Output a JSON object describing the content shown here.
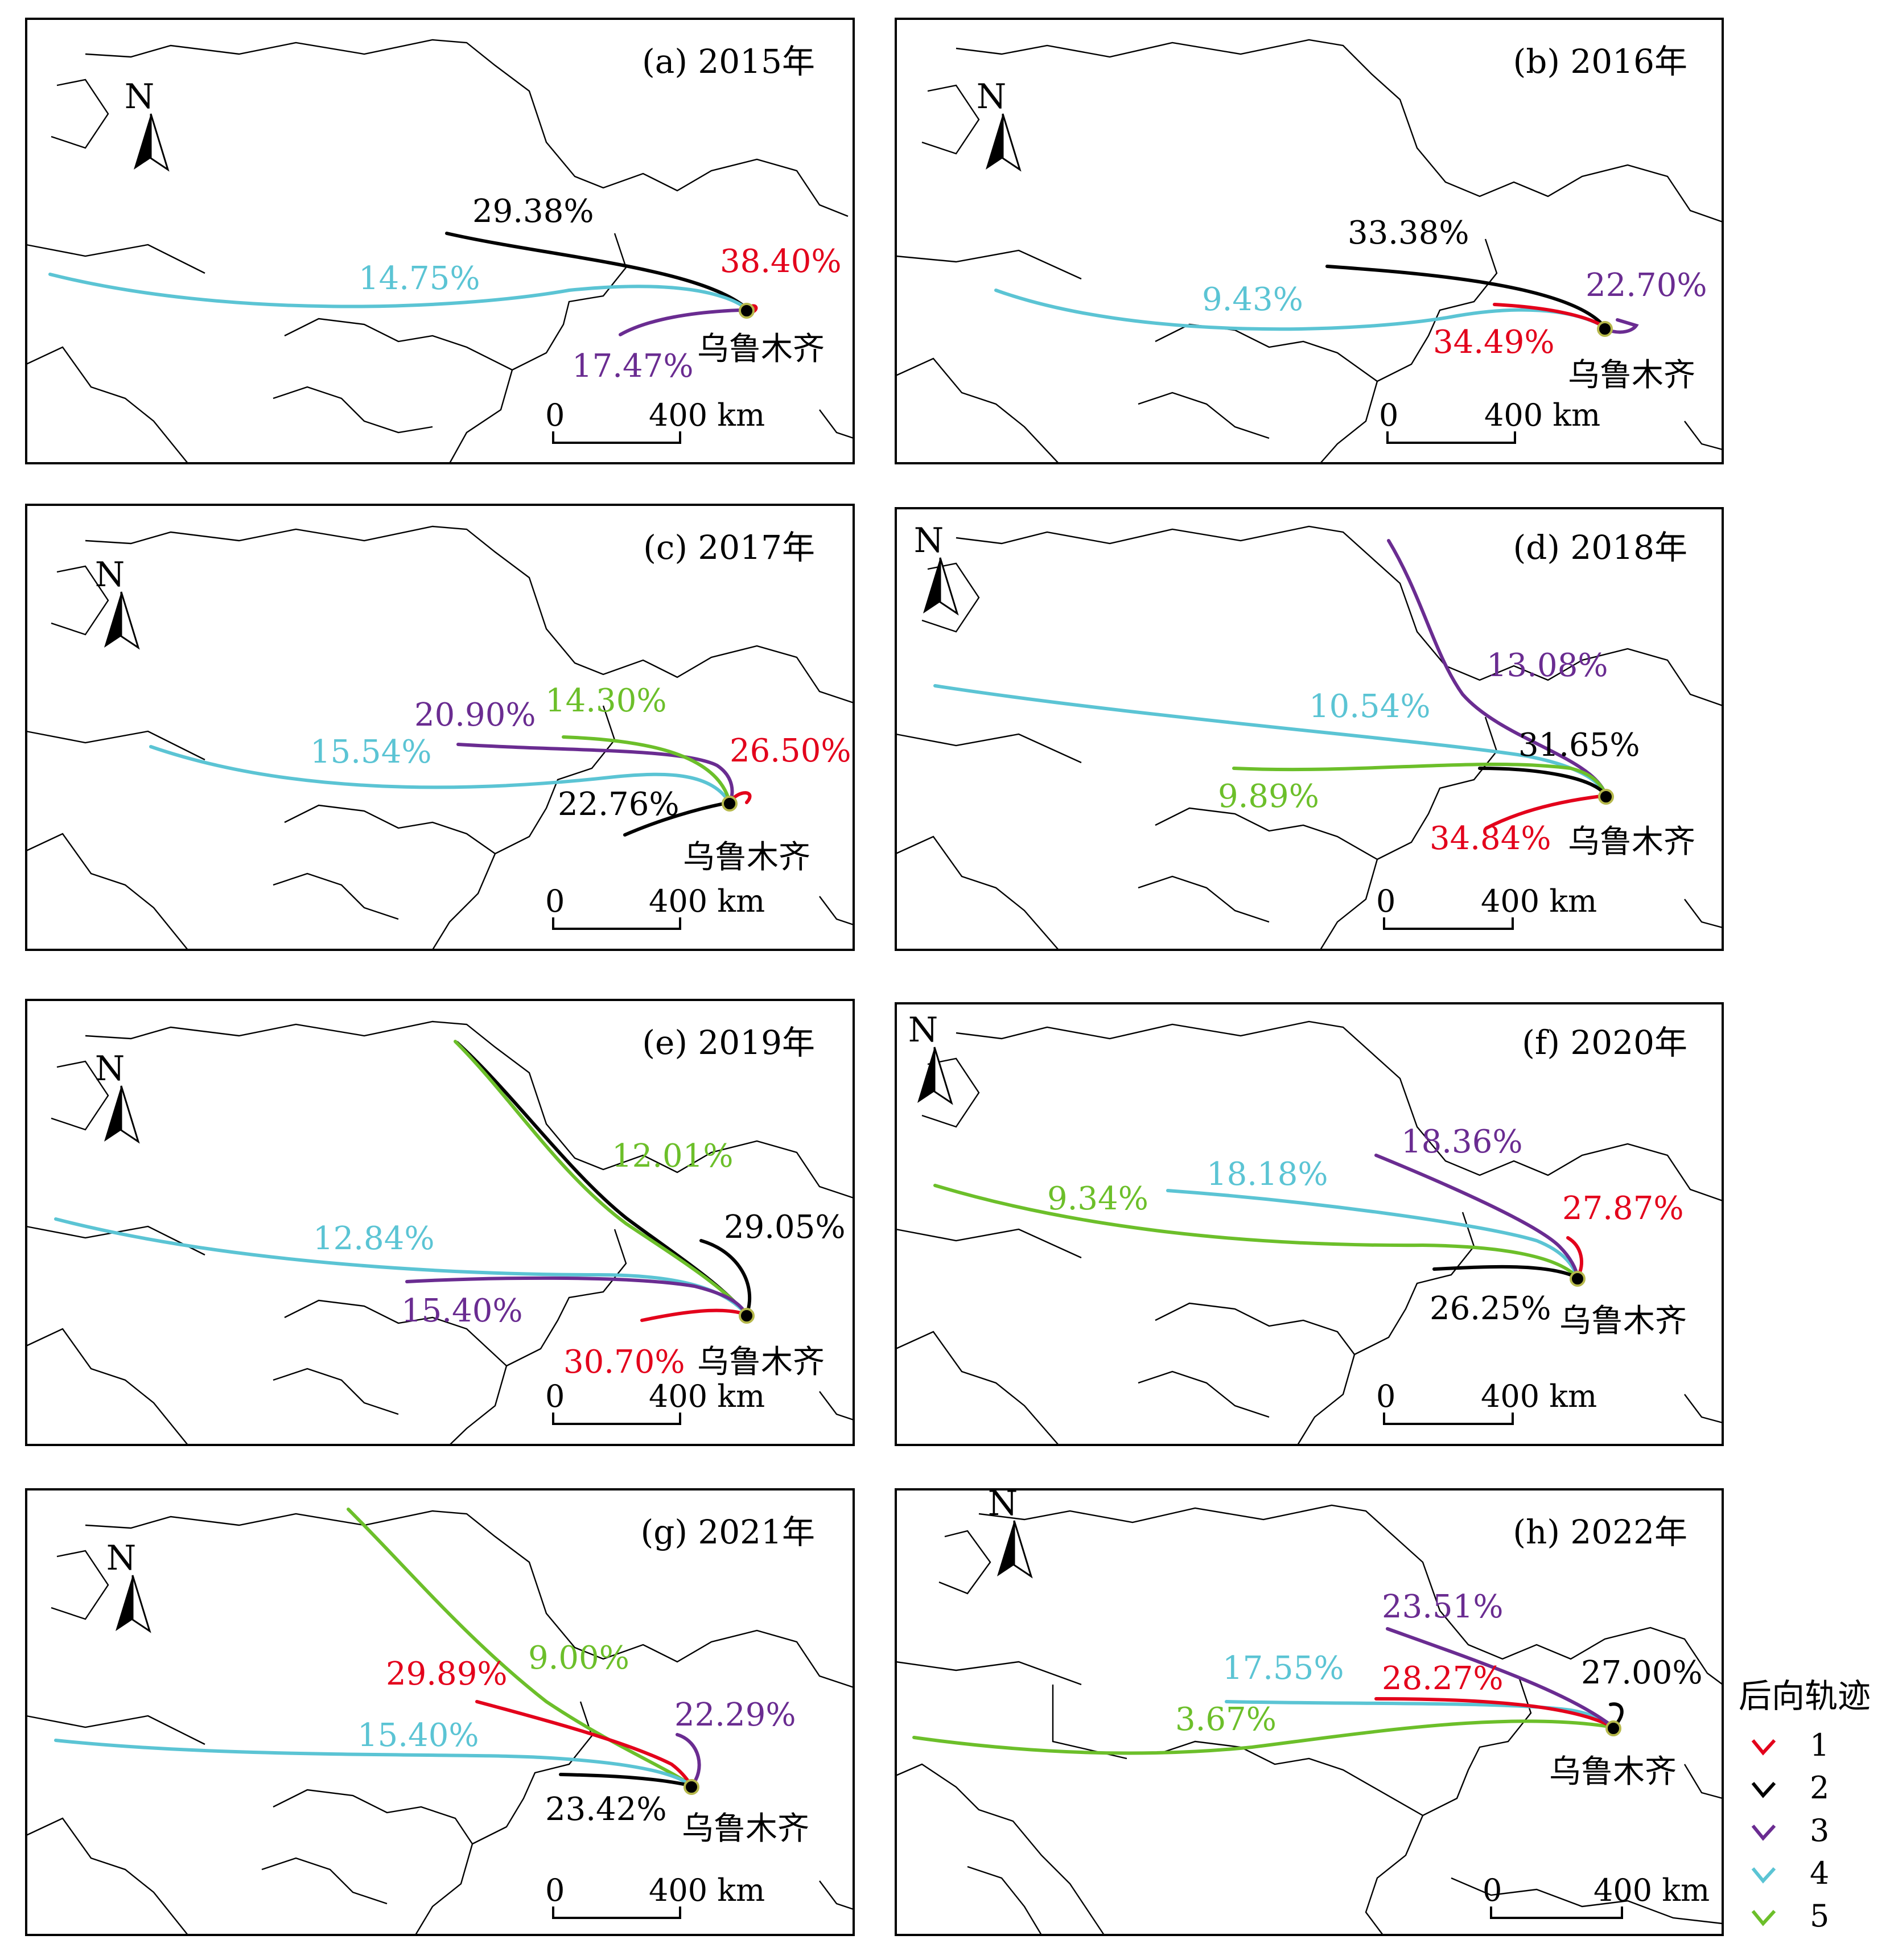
{
  "city": "乌鲁木齐",
  "north": "N",
  "scale": {
    "zero": "0",
    "end": "400 km"
  },
  "legend": {
    "title": "后向轨迹",
    "items": [
      {
        "id": "1",
        "color": "#e3001b"
      },
      {
        "id": "2",
        "color": "#000000"
      },
      {
        "id": "3",
        "color": "#6a2c91"
      },
      {
        "id": "4",
        "color": "#5bc4d4"
      },
      {
        "id": "5",
        "color": "#6cbf2a"
      }
    ]
  },
  "panels": [
    {
      "title": "(a) 2015年",
      "trajectories": [
        {
          "cluster": "1",
          "percent": "38.40%"
        },
        {
          "cluster": "2",
          "percent": "29.38%"
        },
        {
          "cluster": "3",
          "percent": "17.47%"
        },
        {
          "cluster": "4",
          "percent": "14.75%"
        }
      ]
    },
    {
      "title": "(b) 2016年",
      "trajectories": [
        {
          "cluster": "1",
          "percent": "34.49%"
        },
        {
          "cluster": "2",
          "percent": "33.38%"
        },
        {
          "cluster": "3",
          "percent": "22.70%"
        },
        {
          "cluster": "4",
          "percent": "9.43%"
        }
      ]
    },
    {
      "title": "(c) 2017年",
      "trajectories": [
        {
          "cluster": "1",
          "percent": "26.50%"
        },
        {
          "cluster": "2",
          "percent": "22.76%"
        },
        {
          "cluster": "3",
          "percent": "20.90%"
        },
        {
          "cluster": "4",
          "percent": "15.54%"
        },
        {
          "cluster": "5",
          "percent": "14.30%"
        }
      ]
    },
    {
      "title": "(d) 2018年",
      "trajectories": [
        {
          "cluster": "1",
          "percent": "34.84%"
        },
        {
          "cluster": "2",
          "percent": "31.65%"
        },
        {
          "cluster": "3",
          "percent": "13.08%"
        },
        {
          "cluster": "4",
          "percent": "10.54%"
        },
        {
          "cluster": "5",
          "percent": "9.89%"
        }
      ]
    },
    {
      "title": "(e) 2019年",
      "trajectories": [
        {
          "cluster": "1",
          "percent": "30.70%"
        },
        {
          "cluster": "2",
          "percent": "29.05%"
        },
        {
          "cluster": "3",
          "percent": "15.40%"
        },
        {
          "cluster": "4",
          "percent": "12.84%"
        },
        {
          "cluster": "5",
          "percent": "12.01%"
        }
      ]
    },
    {
      "title": "(f) 2020年",
      "trajectories": [
        {
          "cluster": "1",
          "percent": "27.87%"
        },
        {
          "cluster": "2",
          "percent": "26.25%"
        },
        {
          "cluster": "3",
          "percent": "18.36%"
        },
        {
          "cluster": "4",
          "percent": "18.18%"
        },
        {
          "cluster": "5",
          "percent": "9.34%"
        }
      ]
    },
    {
      "title": "(g) 2021年",
      "trajectories": [
        {
          "cluster": "1",
          "percent": "29.89%"
        },
        {
          "cluster": "2",
          "percent": "23.42%"
        },
        {
          "cluster": "3",
          "percent": "22.29%"
        },
        {
          "cluster": "4",
          "percent": "15.40%"
        },
        {
          "cluster": "5",
          "percent": "9.00%"
        }
      ]
    },
    {
      "title": "(h) 2022年",
      "trajectories": [
        {
          "cluster": "1",
          "percent": "28.27%"
        },
        {
          "cluster": "2",
          "percent": "27.00%"
        },
        {
          "cluster": "3",
          "percent": "23.51%"
        },
        {
          "cluster": "4",
          "percent": "17.55%"
        },
        {
          "cluster": "5",
          "percent": "3.67%"
        }
      ]
    }
  ]
}
